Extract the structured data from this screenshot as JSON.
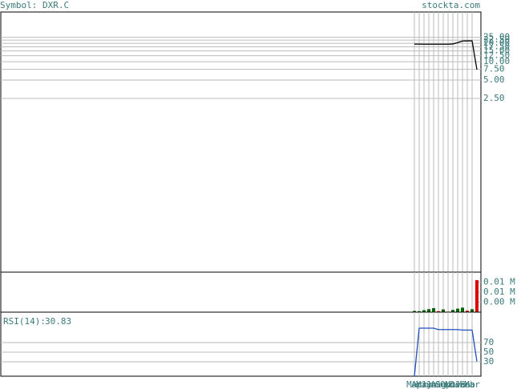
{
  "header": {
    "symbol": "Symbol: DXR.C",
    "site": "stockta.com"
  },
  "chart_data": [
    {
      "type": "line",
      "log_scale": true,
      "color": "#000000",
      "grid": true,
      "categories": [
        "Mar",
        "Apr",
        "May",
        "Jun",
        "Jul",
        "Aug",
        "Sep",
        "Oct",
        "Nov",
        "Dec",
        "Jan",
        "Feb",
        "Mar",
        null
      ],
      "values": [
        19.4,
        19.4,
        19.3,
        19.3,
        19.3,
        19.3,
        19.3,
        19.3,
        19.5,
        20.5,
        21.8,
        21.9,
        21.9,
        7.4
      ],
      "ylim": [
        0.0036,
        65
      ],
      "yticks": [
        {
          "value": 2.5,
          "label": "2.50"
        },
        {
          "value": 5,
          "label": "5.00"
        },
        {
          "value": 7.5,
          "label": "7.50"
        },
        {
          "value": 10,
          "label": "10.00"
        },
        {
          "value": 12.5,
          "label": "12.50"
        },
        {
          "value": 15,
          "label": "15.00"
        },
        {
          "value": 17.5,
          "label": "17.50"
        },
        {
          "value": 20,
          "label": "20.00"
        },
        {
          "value": 22.5,
          "label": "22.50"
        },
        {
          "value": 25,
          "label": "25.00"
        }
      ]
    },
    {
      "type": "bar",
      "grid": false,
      "values": [
        0.0005,
        0.0004,
        0.0008,
        0.0012,
        0.0016,
        0.0004,
        0.0011,
        0.0002,
        0.0009,
        0.0014,
        0.0018,
        0.0006,
        0.0012,
        0.0128
      ],
      "colors": [
        "#006400",
        "#006400",
        "#006400",
        "#006400",
        "#006400",
        "#e00000",
        "#006400",
        "#e00000",
        "#006400",
        "#006400",
        "#006400",
        "#e00000",
        "#006400",
        "#e00000"
      ],
      "ylim": [
        0,
        0.016
      ],
      "yticks": [
        {
          "value": 0.004,
          "label": "0.00 M"
        },
        {
          "value": 0.008,
          "label": "0.01 M"
        },
        {
          "value": 0.012,
          "label": "0.01 M"
        }
      ]
    },
    {
      "type": "line",
      "title": "RSI(14):",
      "color": "#2050c0",
      "grid": true,
      "values": [
        0,
        100,
        100,
        100,
        100,
        97,
        97,
        97,
        97,
        97,
        96,
        96,
        96,
        30.83
      ],
      "ylim": [
        0,
        133.3
      ],
      "yticks": [
        30,
        50,
        70
      ]
    }
  ]
}
